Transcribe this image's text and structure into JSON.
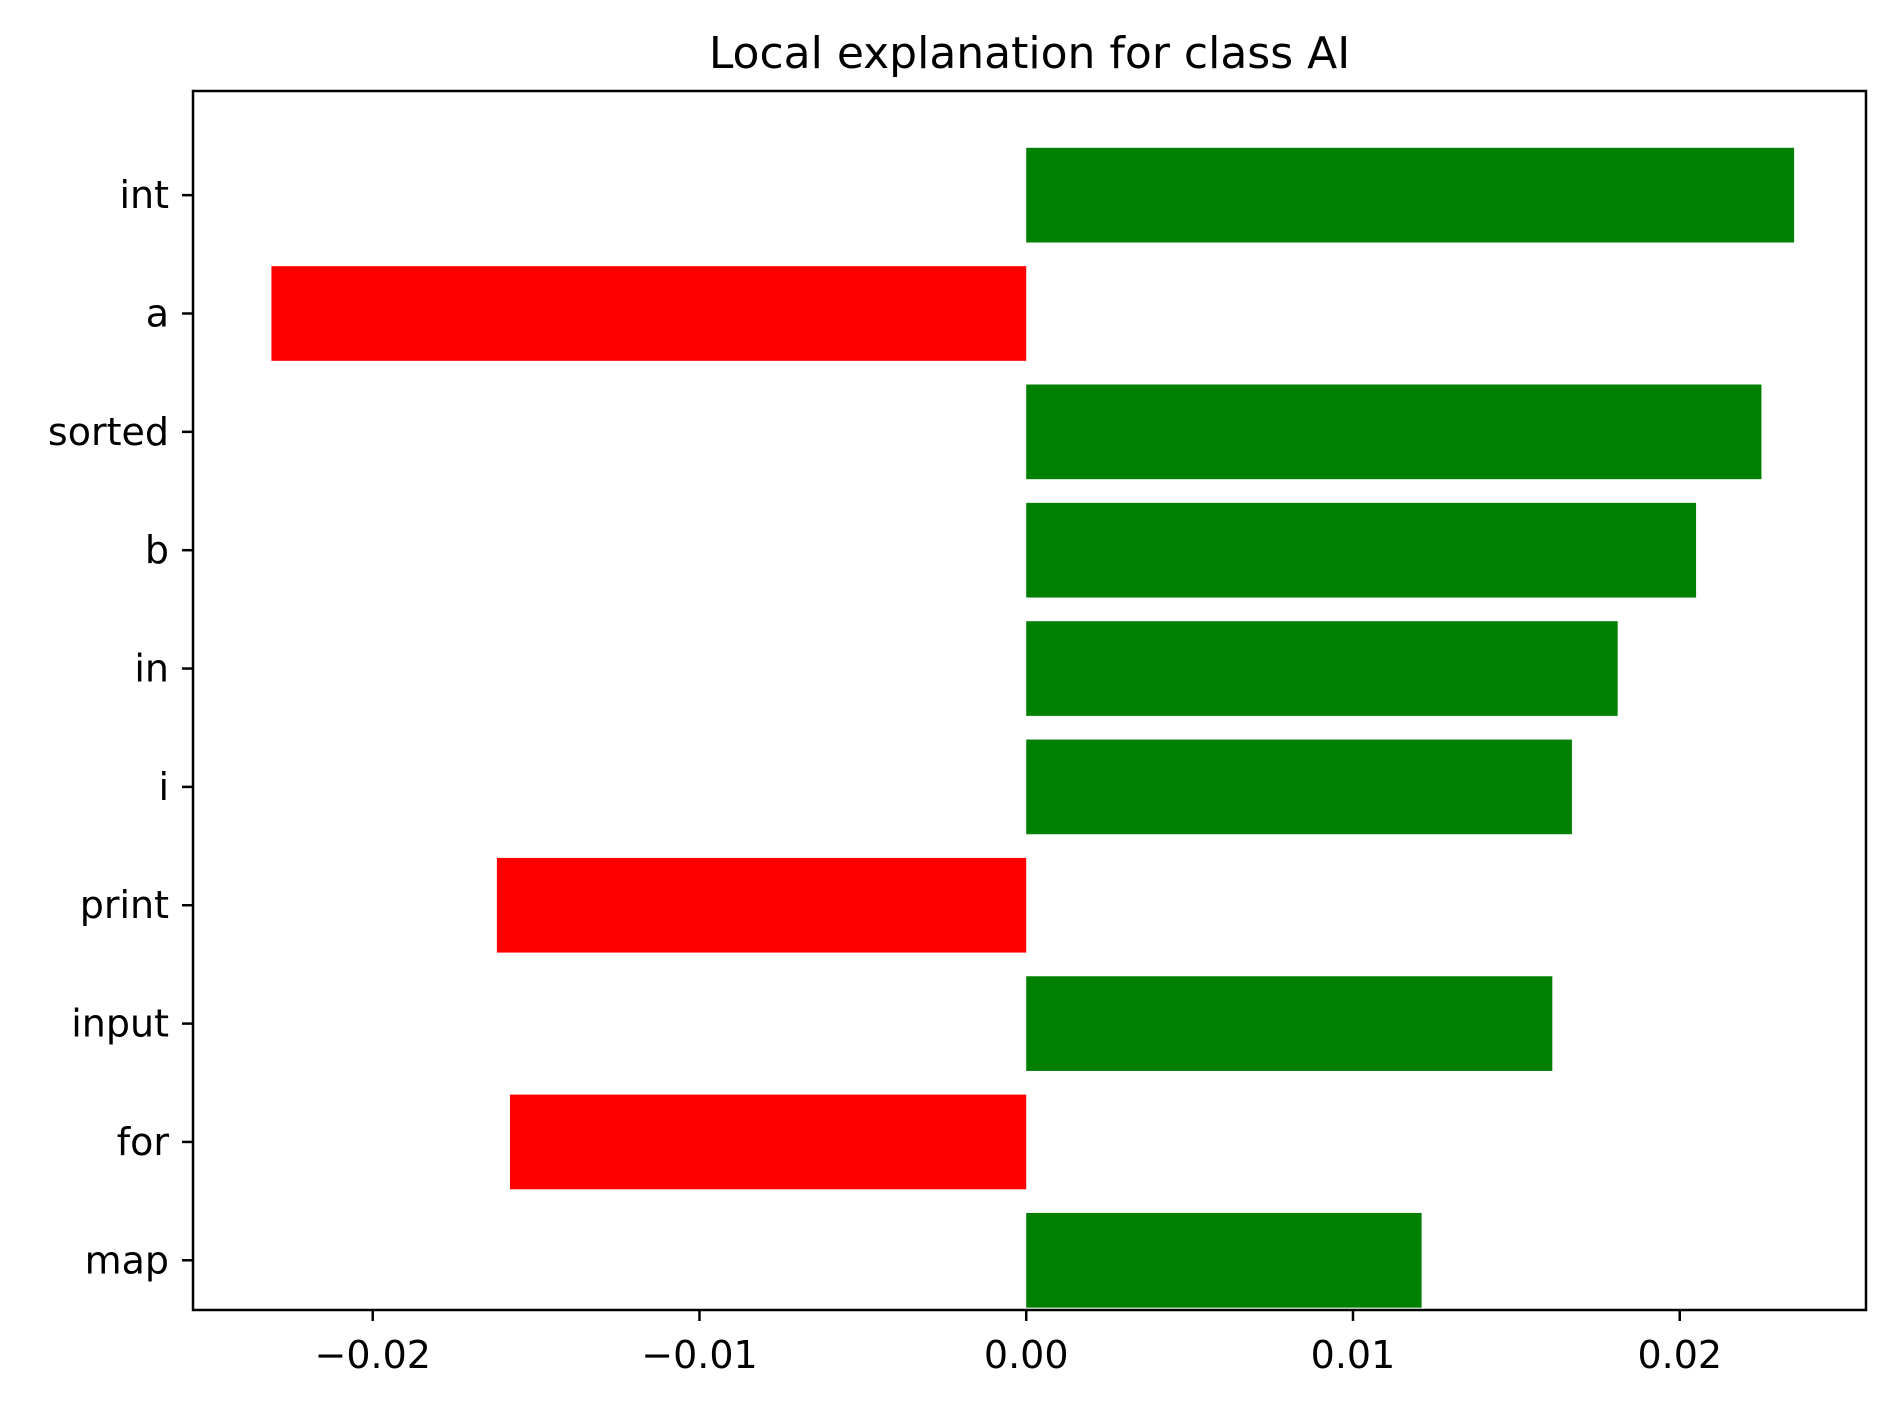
{
  "chart_data": {
    "type": "bar",
    "orientation": "horizontal",
    "title": "Local explanation for class AI",
    "xlabel": "",
    "ylabel": "",
    "categories": [
      "int",
      "a",
      "sorted",
      "b",
      "in",
      "i",
      "print",
      "input",
      "for",
      "map"
    ],
    "values": [
      0.0235,
      -0.0231,
      0.0225,
      0.0205,
      0.0181,
      0.0167,
      -0.0162,
      0.0161,
      -0.0158,
      0.0121
    ],
    "xlim": [
      -0.0255,
      0.0257
    ],
    "xticks": [
      -0.02,
      -0.01,
      0.0,
      0.01,
      0.02
    ],
    "xtick_labels": [
      "−0.02",
      "−0.01",
      "0.00",
      "0.01",
      "0.02"
    ],
    "colors": {
      "positive": "#008000",
      "negative": "#ff0000"
    },
    "grid": false,
    "legend": "none"
  }
}
